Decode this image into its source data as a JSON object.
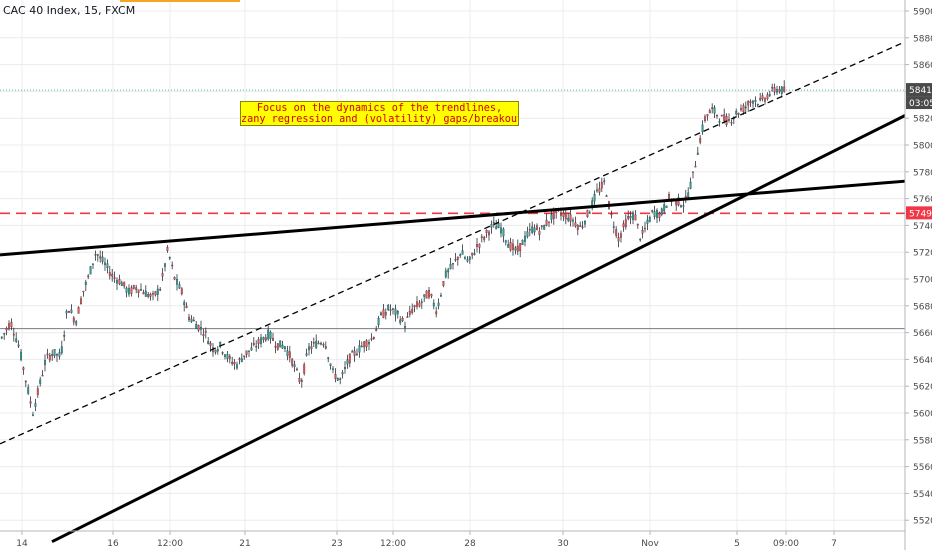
{
  "header": {
    "symbol": "CAC 40 Index, 15, FXCM"
  },
  "annotation": {
    "line1": "Focus on the dynamics of the trendlines,",
    "line2": "zany regression and (volatility) gaps/breakout"
  },
  "colors": {
    "up": "#26a69a",
    "down": "#ef5350",
    "candle_outline": "#2a2e39",
    "grid": "#ececec",
    "trendline": "#000000",
    "level_dashed": "#f23645",
    "level_solid": "#787b86",
    "price_badge": "#4a4a4a",
    "level_badge": "#f23645"
  },
  "chart_data": {
    "type": "candlestick",
    "title": "CAC 40 Index, 15, FXCM",
    "y_axis": {
      "min": 5510,
      "max": 5910,
      "ticks": [
        5520,
        5540,
        5560,
        5580,
        5600,
        5620,
        5640,
        5660,
        5680,
        5700,
        5720,
        5740,
        5760,
        5780,
        5800,
        5820,
        5840,
        5860,
        5880,
        5900
      ]
    },
    "x_axis": {
      "ticks": [
        "14",
        "16",
        "12:00",
        "21",
        "23",
        "12:00",
        "28",
        "30",
        "Nov",
        "5",
        "09:00",
        "7"
      ]
    },
    "current_price": {
      "value": "5841",
      "countdown": "03:05"
    },
    "levels": [
      {
        "name": "resistance",
        "value": 5749,
        "label": "5749",
        "style": "dashed"
      },
      {
        "name": "support",
        "value": 5663,
        "style": "solid"
      }
    ],
    "trendlines": [
      {
        "name": "long-rising-support",
        "from": [
          "13",
          5504
        ],
        "to": [
          "7+",
          5822
        ],
        "style": "solid"
      },
      {
        "name": "flat-resistance",
        "from": [
          "13",
          5718
        ],
        "to": [
          "7+",
          5773
        ],
        "style": "solid"
      },
      {
        "name": "regression-upper",
        "from": [
          "13",
          5577
        ],
        "to": [
          "7+",
          5877
        ],
        "style": "dashed"
      }
    ],
    "price_path": [
      [
        0,
        5655
      ],
      [
        10,
        5668
      ],
      [
        18,
        5650
      ],
      [
        25,
        5625
      ],
      [
        32,
        5600
      ],
      [
        38,
        5618
      ],
      [
        45,
        5640
      ],
      [
        52,
        5645
      ],
      [
        60,
        5642
      ],
      [
        67,
        5680
      ],
      [
        75,
        5668
      ],
      [
        82,
        5690
      ],
      [
        88,
        5702
      ],
      [
        95,
        5720
      ],
      [
        103,
        5712
      ],
      [
        112,
        5702
      ],
      [
        120,
        5698
      ],
      [
        128,
        5690
      ],
      [
        136,
        5694
      ],
      [
        144,
        5690
      ],
      [
        152,
        5686
      ],
      [
        160,
        5694
      ],
      [
        167,
        5722
      ],
      [
        174,
        5700
      ],
      [
        181,
        5690
      ],
      [
        188,
        5672
      ],
      [
        196,
        5666
      ],
      [
        204,
        5660
      ],
      [
        212,
        5648
      ],
      [
        220,
        5650
      ],
      [
        228,
        5640
      ],
      [
        236,
        5636
      ],
      [
        244,
        5644
      ],
      [
        252,
        5648
      ],
      [
        260,
        5654
      ],
      [
        268,
        5659
      ],
      [
        276,
        5651
      ],
      [
        284,
        5650
      ],
      [
        292,
        5638
      ],
      [
        300,
        5622
      ],
      [
        308,
        5648
      ],
      [
        316,
        5652
      ],
      [
        324,
        5654
      ],
      [
        332,
        5630
      ],
      [
        340,
        5624
      ],
      [
        348,
        5640
      ],
      [
        356,
        5646
      ],
      [
        364,
        5652
      ],
      [
        372,
        5656
      ],
      [
        380,
        5672
      ],
      [
        388,
        5678
      ],
      [
        396,
        5674
      ],
      [
        404,
        5666
      ],
      [
        412,
        5678
      ],
      [
        420,
        5682
      ],
      [
        428,
        5690
      ],
      [
        436,
        5676
      ],
      [
        444,
        5702
      ],
      [
        452,
        5710
      ],
      [
        460,
        5720
      ],
      [
        468,
        5712
      ],
      [
        476,
        5724
      ],
      [
        484,
        5732
      ],
      [
        492,
        5740
      ],
      [
        500,
        5738
      ],
      [
        508,
        5726
      ],
      [
        516,
        5720
      ],
      [
        524,
        5730
      ],
      [
        532,
        5738
      ],
      [
        540,
        5736
      ],
      [
        548,
        5744
      ],
      [
        556,
        5750
      ],
      [
        564,
        5748
      ],
      [
        572,
        5744
      ],
      [
        580,
        5738
      ],
      [
        588,
        5750
      ],
      [
        596,
        5764
      ],
      [
        604,
        5772
      ],
      [
        610,
        5748
      ],
      [
        618,
        5730
      ],
      [
        626,
        5744
      ],
      [
        634,
        5748
      ],
      [
        640,
        5730
      ],
      [
        646,
        5740
      ],
      [
        652,
        5750
      ],
      [
        660,
        5748
      ],
      [
        668,
        5760
      ],
      [
        676,
        5758
      ],
      [
        684,
        5756
      ],
      [
        692,
        5776
      ],
      [
        698,
        5800
      ],
      [
        705,
        5822
      ],
      [
        712,
        5826
      ],
      [
        720,
        5820
      ],
      [
        728,
        5818
      ],
      [
        736,
        5824
      ],
      [
        744,
        5828
      ],
      [
        752,
        5834
      ],
      [
        760,
        5832
      ],
      [
        768,
        5838
      ],
      [
        776,
        5842
      ],
      [
        784,
        5840
      ]
    ],
    "grid": true
  }
}
